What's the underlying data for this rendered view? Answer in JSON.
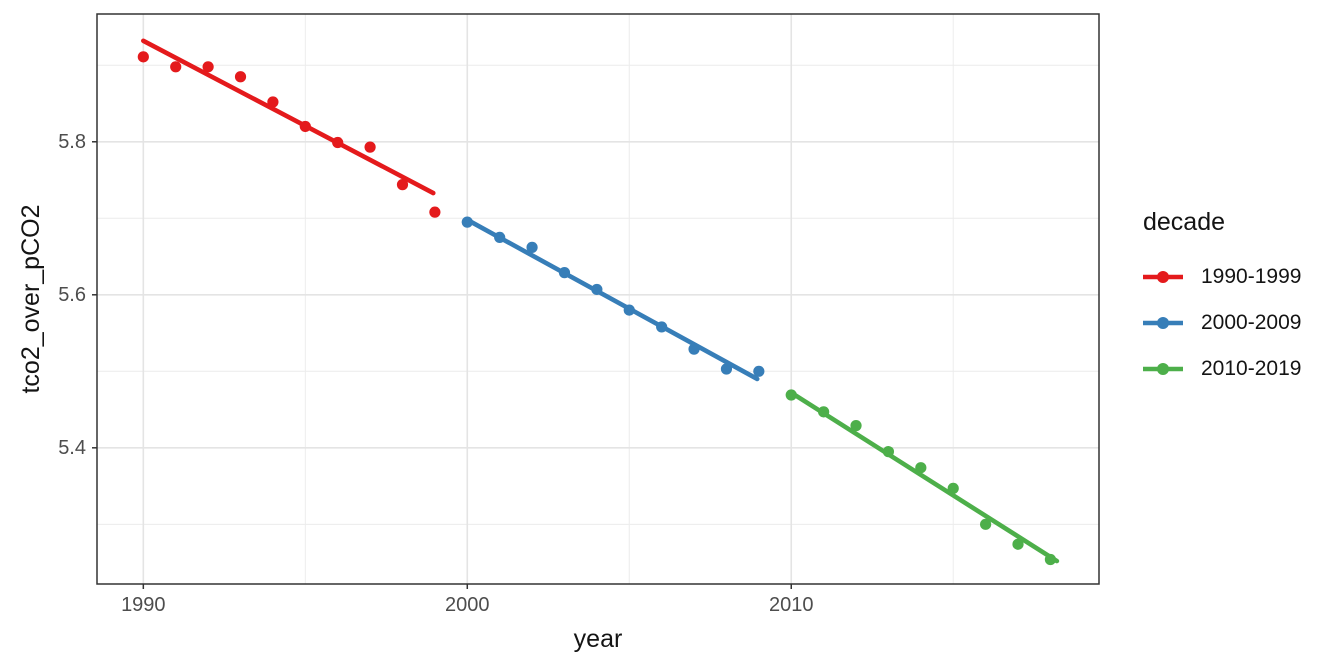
{
  "chart_data": {
    "type": "scatter",
    "title": "",
    "xlabel": "year",
    "ylabel": "tco2_over_pCO2",
    "xlim": [
      1988.57,
      2019.5
    ],
    "ylim": [
      5.222,
      5.967
    ],
    "x_ticks": [
      1990,
      2000,
      2010
    ],
    "x_minor_gridlines": [
      1995,
      2005,
      2015
    ],
    "y_ticks": [
      5.4,
      5.6,
      5.8
    ],
    "y_minor_gridlines": [
      5.3,
      5.5,
      5.7,
      5.9
    ],
    "grid": "on",
    "panel_border_color": "#333333",
    "gridline_color": "#e8e8e8",
    "tick_text_color": "#4d4d4d",
    "legend": {
      "title": "decade",
      "position": "right"
    },
    "series": [
      {
        "name": "1990-1999",
        "color": "#E41A1C",
        "x": [
          1990,
          1991,
          1992,
          1993,
          1994,
          1995,
          1996,
          1997,
          1998,
          1999
        ],
        "y": [
          5.911,
          5.898,
          5.898,
          5.885,
          5.852,
          5.82,
          5.799,
          5.793,
          5.744,
          5.708
        ],
        "trend": {
          "x": [
            1990,
            1998.95
          ],
          "y": [
            5.932,
            5.733
          ]
        }
      },
      {
        "name": "2000-2009",
        "color": "#377EB8",
        "x": [
          2000,
          2001,
          2002,
          2003,
          2004,
          2005,
          2006,
          2007,
          2008,
          2009
        ],
        "y": [
          5.695,
          5.675,
          5.662,
          5.629,
          5.607,
          5.58,
          5.558,
          5.529,
          5.503,
          5.5
        ],
        "trend": {
          "x": [
            2000,
            2008.95
          ],
          "y": [
            5.698,
            5.49
          ]
        }
      },
      {
        "name": "2010-2019",
        "color": "#4DAF4A",
        "x": [
          2010,
          2011,
          2012,
          2013,
          2014,
          2015,
          2016,
          2017,
          2018
        ],
        "y": [
          5.469,
          5.447,
          5.429,
          5.395,
          5.374,
          5.347,
          5.3,
          5.274,
          5.254
        ],
        "trend": {
          "x": [
            2010,
            2018.2
          ],
          "y": [
            5.472,
            5.252
          ]
        }
      }
    ]
  }
}
